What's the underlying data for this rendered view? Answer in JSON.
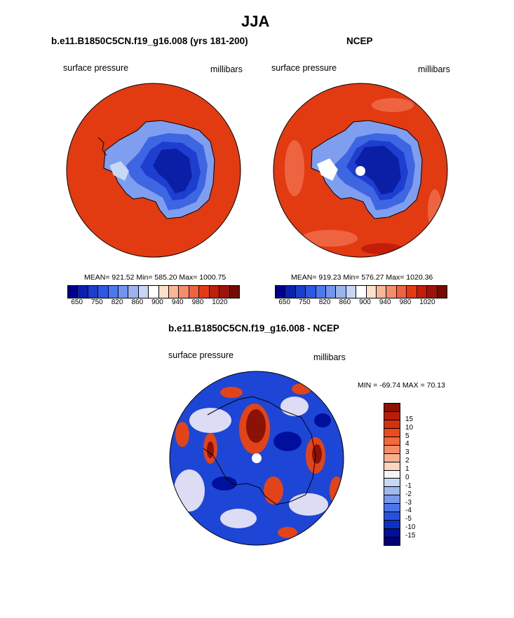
{
  "figure": {
    "season": "JJA"
  },
  "panels": [
    {
      "title": "b.e11.B1850C5CN.f19_g16.008 (yrs 181-200)",
      "left_label": "surface pressure",
      "right_label": "millibars",
      "stats": "MEAN= 921.52  Min= 585.20  Max= 1000.75"
    },
    {
      "title": "NCEP",
      "left_label": "surface pressure",
      "right_label": "millibars",
      "stats": "MEAN= 919.23  Min= 576.27  Max= 1020.36"
    }
  ],
  "diff_panel": {
    "title": "b.e11.B1850C5CN.f19_g16.008 - NCEP",
    "left_label": "surface pressure",
    "right_label": "millibars",
    "stats": "MIN = -69.74 MAX =  70.13"
  },
  "colorbar_main": {
    "colors": [
      "#00008c",
      "#0a20b0",
      "#1a3ed0",
      "#2d58e6",
      "#4a78ee",
      "#7096ef",
      "#9ab4f0",
      "#c6d6f4",
      "#ffffff",
      "#fde0cc",
      "#f8b898",
      "#f48e6a",
      "#ef6440",
      "#e43a14",
      "#c41e0a",
      "#a01208",
      "#780a04"
    ],
    "labels": [
      "650",
      "750",
      "820",
      "860",
      "900",
      "940",
      "980",
      "1020"
    ]
  },
  "colorbar_diff": {
    "colors": [
      "#8a1206",
      "#b81c0a",
      "#d8300c",
      "#ee4a1c",
      "#f26a3c",
      "#f68c64",
      "#f8b090",
      "#fcd6c0",
      "#f4f4f4",
      "#c8d8f4",
      "#a0b8f0",
      "#7898ec",
      "#4c74e6",
      "#2452dc",
      "#0a30c4",
      "#00109c",
      "#000070"
    ],
    "labels": [
      "15",
      "10",
      "5",
      "4",
      "3",
      "2",
      "1",
      "0",
      "-1",
      "-2",
      "-3",
      "-4",
      "-5",
      "-10",
      "-15"
    ]
  }
}
